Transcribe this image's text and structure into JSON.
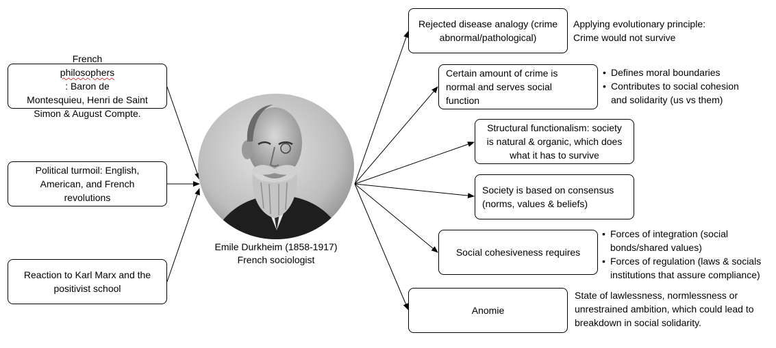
{
  "center": {
    "caption_line1": "Emile Durkheim (1858-1917)",
    "caption_line2": "French sociologist",
    "portrait": "portrait-photo"
  },
  "influences": [
    {
      "line1_pre": "French ",
      "line1_mark": "philosophers",
      "line1_post": ": Baron de",
      "line2": "Montesquieu, Henri de Saint",
      "line3": "Simon & August Compte."
    },
    {
      "line1": "Political turmoil: English,",
      "line2": "American, and French",
      "line3": "revolutions"
    },
    {
      "line1": "Reaction to Karl Marx and the",
      "line2": "positivist school"
    }
  ],
  "ideas": [
    {
      "line1": "Rejected disease analogy (crime",
      "line2": "abnormal/pathological)"
    },
    {
      "line1": "Certain amount of crime is",
      "line2": "normal and serves social",
      "line3": "function"
    },
    {
      "line1": "Structural functionalism: society",
      "line2": "is natural & organic, which does",
      "line3": "what it has to survive"
    },
    {
      "line1": "Society is based on consensus",
      "line2": "(norms, values & beliefs)"
    },
    {
      "line1": "Social cohesiveness requires"
    },
    {
      "line1": "Anomie"
    }
  ],
  "notes": {
    "disease": {
      "line1": "Applying evolutionary principle:",
      "line2": "Crime would not survive"
    },
    "crime_normal": [
      {
        "line1": "Defines moral boundaries"
      },
      {
        "line1": "Contributes to social cohesion",
        "line2": "and solidarity (us vs them)"
      }
    ],
    "cohesion": [
      {
        "line1": "Forces of integration (social",
        "line2": "bonds/shared values)"
      },
      {
        "line1": "Forces of regulation (laws & socials",
        "line2": "institutions that assure compliance)"
      }
    ],
    "anomie": {
      "line1": "State of lawlessness, normlessness or",
      "line2": "unrestrained ambition, which could lead to",
      "line3": "breakdown in social solidarity."
    }
  },
  "colors": {
    "line": "#000000",
    "spellcheck": "#d23c3c"
  }
}
